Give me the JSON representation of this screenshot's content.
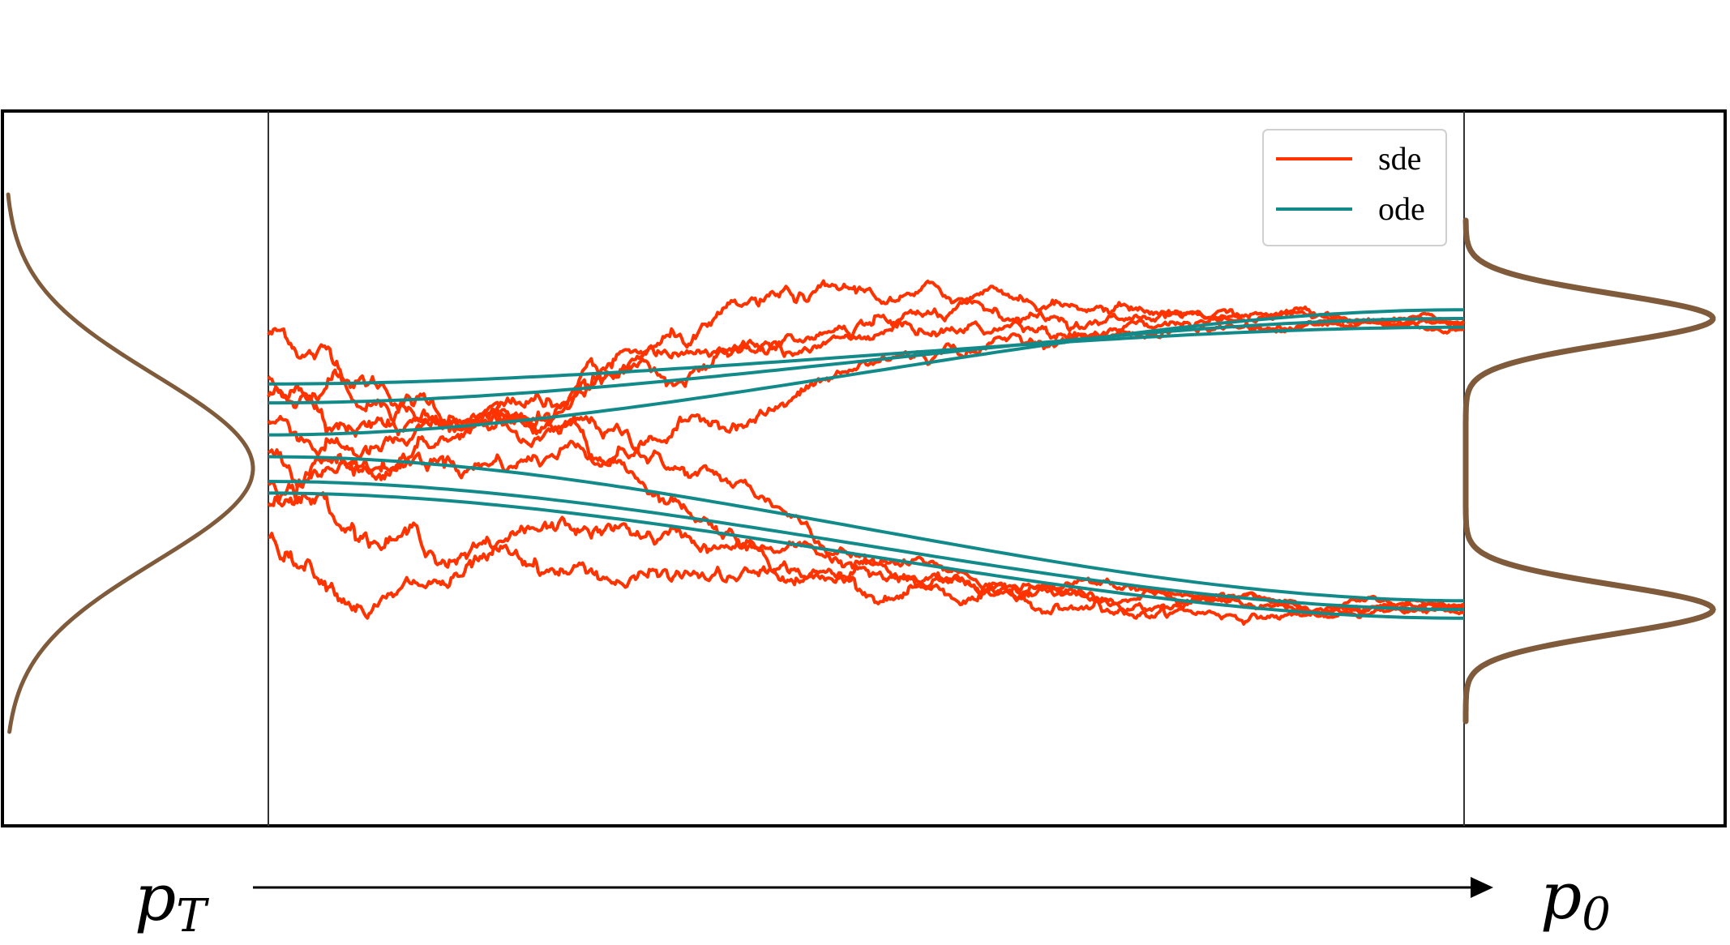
{
  "labels": {
    "start": {
      "base": "p",
      "sub": "T"
    },
    "end": {
      "base": "p",
      "sub": "0"
    }
  },
  "legend": [
    {
      "name": "sde",
      "color": "#ff3300"
    },
    {
      "name": "ode",
      "color": "#138a8a"
    }
  ],
  "colors": {
    "density": "#7f5b3b",
    "frame": "#000000",
    "arrow": "#000000"
  },
  "sde_paths": {
    "count": 8,
    "final_modes": [
      -1,
      -1,
      -1,
      -1,
      1,
      1,
      1,
      1
    ]
  },
  "ode_paths": {
    "count": 6,
    "final_modes": [
      -1,
      -1,
      -1,
      1,
      1,
      1
    ]
  },
  "distributions": {
    "p_T": {
      "type": "gaussian",
      "modes": 1
    },
    "p_0": {
      "type": "gaussian-mixture",
      "modes": 2
    }
  }
}
